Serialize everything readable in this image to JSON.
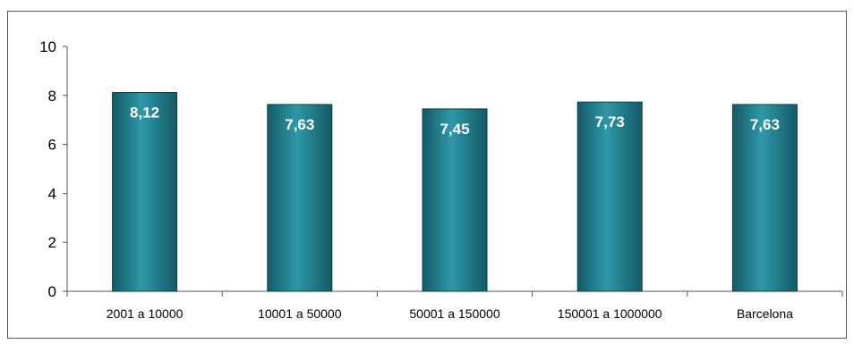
{
  "chart_data": {
    "type": "bar",
    "categories": [
      "2001 a 10000",
      "10001 a 50000",
      "50001 a 150000",
      "150001 a 1000000",
      "Barcelona"
    ],
    "values": [
      8.12,
      7.63,
      7.45,
      7.73,
      7.63
    ],
    "data_labels": [
      "8,12",
      "7,63",
      "7,45",
      "7,73",
      "7,63"
    ],
    "yticks": [
      "0",
      "2",
      "4",
      "6",
      "8",
      "10"
    ],
    "ylim": [
      0,
      10
    ],
    "grid": false,
    "legend": "none",
    "colors": {
      "bar": "#1f7c8c",
      "bar_light": "#2e98a8",
      "bar_dark": "#145a66",
      "axis": "#555555"
    }
  }
}
